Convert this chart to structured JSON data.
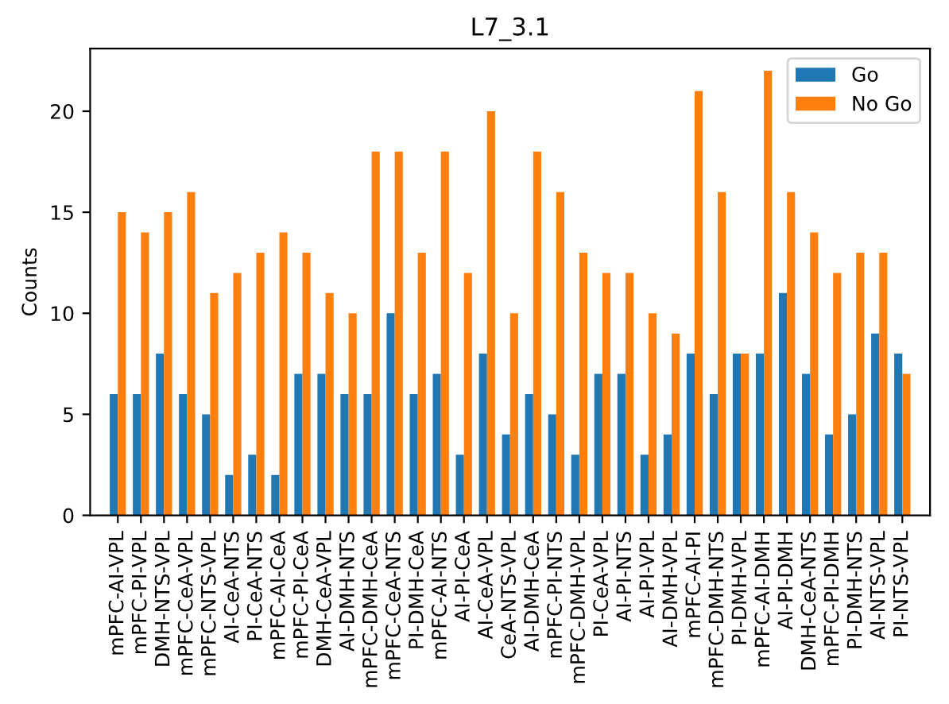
{
  "chart_data": {
    "type": "bar",
    "title": "L7_3.1",
    "ylabel": "Counts",
    "categories": [
      "mPFC-AI-VPL",
      "mPFC-PI-VPL",
      "DMH-NTS-VPL",
      "mPFC-CeA-VPL",
      "mPFC-NTS-VPL",
      "AI-CeA-NTS",
      "PI-CeA-NTS",
      "mPFC-AI-CeA",
      "mPFC-PI-CeA",
      "DMH-CeA-VPL",
      "AI-DMH-NTS",
      "mPFC-DMH-CeA",
      "mPFC-CeA-NTS",
      "PI-DMH-CeA",
      "mPFC-AI-NTS",
      "AI-PI-CeA",
      "AI-CeA-VPL",
      "CeA-NTS-VPL",
      "AI-DMH-CeA",
      "mPFC-PI-NTS",
      "mPFC-DMH-VPL",
      "PI-CeA-VPL",
      "AI-PI-NTS",
      "AI-PI-VPL",
      "AI-DMH-VPL",
      "mPFC-AI-PI",
      "mPFC-DMH-NTS",
      "PI-DMH-VPL",
      "mPFC-AI-DMH",
      "AI-PI-DMH",
      "DMH-CeA-NTS",
      "mPFC-PI-DMH",
      "PI-DMH-NTS",
      "AI-NTS-VPL",
      "PI-NTS-VPL"
    ],
    "series": [
      {
        "name": "Go",
        "color": "#1f77b4",
        "values": [
          6,
          6,
          8,
          6,
          5,
          2,
          3,
          2,
          7,
          7,
          6,
          6,
          10,
          6,
          7,
          3,
          8,
          4,
          6,
          5,
          3,
          7,
          7,
          3,
          4,
          8,
          6,
          8,
          8,
          11,
          7,
          4,
          5,
          9,
          8
        ]
      },
      {
        "name": "No Go",
        "color": "#ff7f0e",
        "values": [
          15,
          14,
          15,
          16,
          11,
          12,
          13,
          14,
          13,
          11,
          10,
          18,
          18,
          13,
          18,
          12,
          20,
          10,
          18,
          16,
          13,
          12,
          12,
          10,
          9,
          21,
          16,
          8,
          22,
          16,
          14,
          12,
          13,
          13,
          7
        ]
      }
    ],
    "ylim": [
      0,
      23.1
    ],
    "yticks": [
      0,
      5,
      10,
      15,
      20
    ],
    "grid": false,
    "legend": "top right"
  }
}
